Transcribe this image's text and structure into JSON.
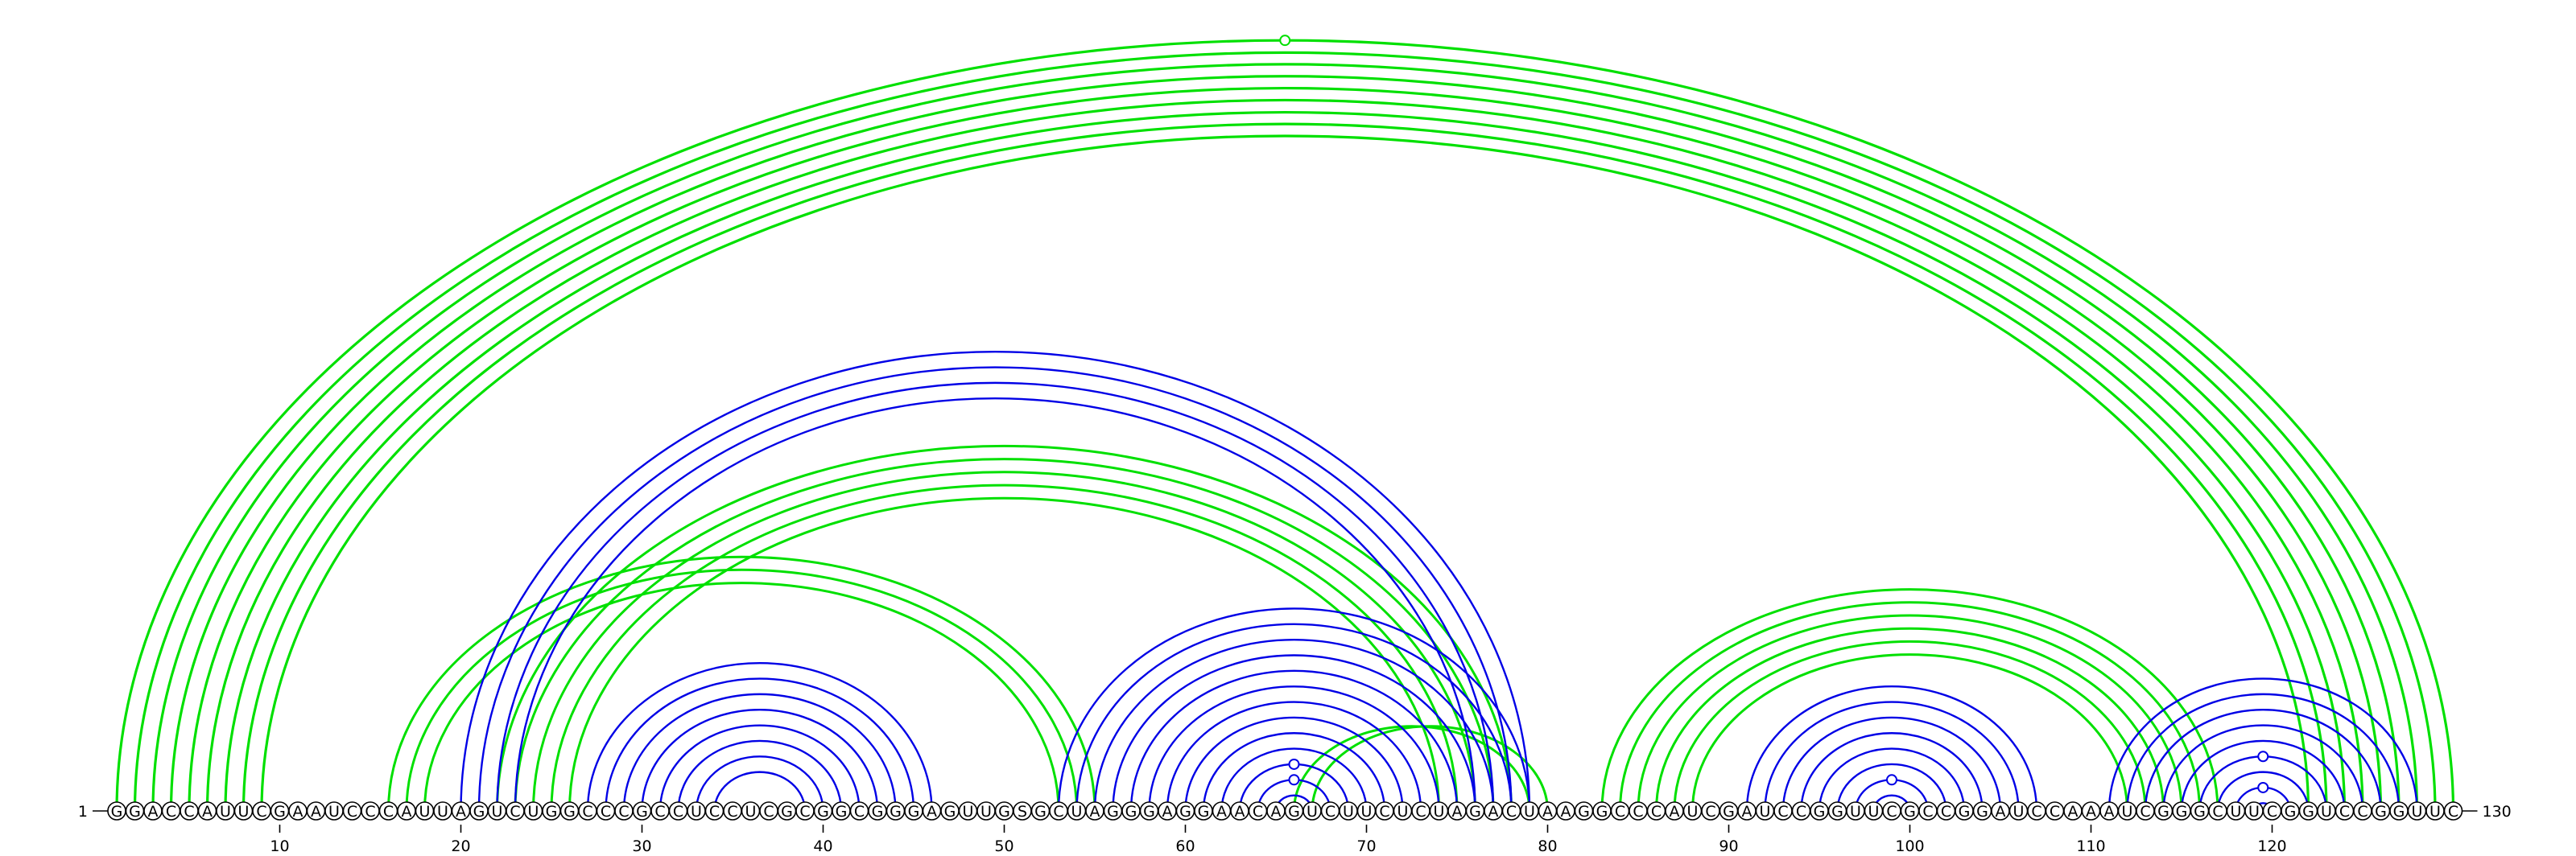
{
  "sequence": "GGACCAUUCGAAUCCCAUUAGUCUGGCCCGCCUCCUCGCGGCGGGAGUUGSGCUAGGGAGGAACAGUCUUCUCUAGACUAAGGCCCAUCGAUCCGGUUCGCCGGAUCCAAAUCGGGCUUCGGUCCGGUUC",
  "start_label": "1",
  "end_label": "130",
  "ticks": [
    "10",
    "20",
    "30",
    "40",
    "50",
    "60",
    "70",
    "80",
    "90",
    "100",
    "110",
    "120"
  ],
  "colors": {
    "blue_arcs": "#0000e6",
    "green_arcs": "#00e000",
    "axis": "#000000"
  },
  "arcs": {
    "green_upper": [
      [
        1,
        130
      ],
      [
        2,
        129
      ],
      [
        3,
        128
      ],
      [
        4,
        127
      ],
      [
        5,
        126
      ],
      [
        6,
        125
      ],
      [
        7,
        124
      ],
      [
        8,
        123
      ],
      [
        9,
        122
      ]
    ],
    "green_lower": [
      [
        16,
        55
      ],
      [
        17,
        54
      ],
      [
        18,
        53
      ],
      [
        22,
        78
      ],
      [
        23,
        77
      ],
      [
        24,
        76
      ],
      [
        25,
        75
      ],
      [
        26,
        74
      ],
      [
        66,
        79
      ],
      [
        67,
        80
      ],
      [
        83,
        117
      ],
      [
        84,
        116
      ],
      [
        85,
        115
      ],
      [
        86,
        114
      ],
      [
        87,
        113
      ],
      [
        88,
        112
      ]
    ],
    "blue": [
      [
        20,
        79
      ],
      [
        21,
        78
      ],
      [
        22,
        77
      ],
      [
        23,
        76
      ],
      [
        27,
        46
      ],
      [
        28,
        45
      ],
      [
        29,
        44
      ],
      [
        30,
        43
      ],
      [
        31,
        42
      ],
      [
        32,
        41
      ],
      [
        33,
        40
      ],
      [
        34,
        39
      ],
      [
        53,
        79
      ],
      [
        54,
        78
      ],
      [
        55,
        77
      ],
      [
        56,
        76
      ],
      [
        57,
        75
      ],
      [
        58,
        74
      ],
      [
        59,
        73
      ],
      [
        60,
        72
      ],
      [
        61,
        71
      ],
      [
        62,
        70
      ],
      [
        63,
        69
      ],
      [
        64,
        68
      ],
      [
        65,
        67
      ],
      [
        91,
        107
      ],
      [
        92,
        106
      ],
      [
        93,
        105
      ],
      [
        94,
        104
      ],
      [
        95,
        103
      ],
      [
        96,
        102
      ],
      [
        97,
        101
      ],
      [
        98,
        100
      ],
      [
        111,
        128
      ],
      [
        112,
        127
      ],
      [
        113,
        126
      ],
      [
        114,
        125
      ],
      [
        115,
        124
      ],
      [
        116,
        123
      ],
      [
        117,
        122
      ],
      [
        118,
        121
      ],
      [
        119,
        120
      ]
    ]
  }
}
